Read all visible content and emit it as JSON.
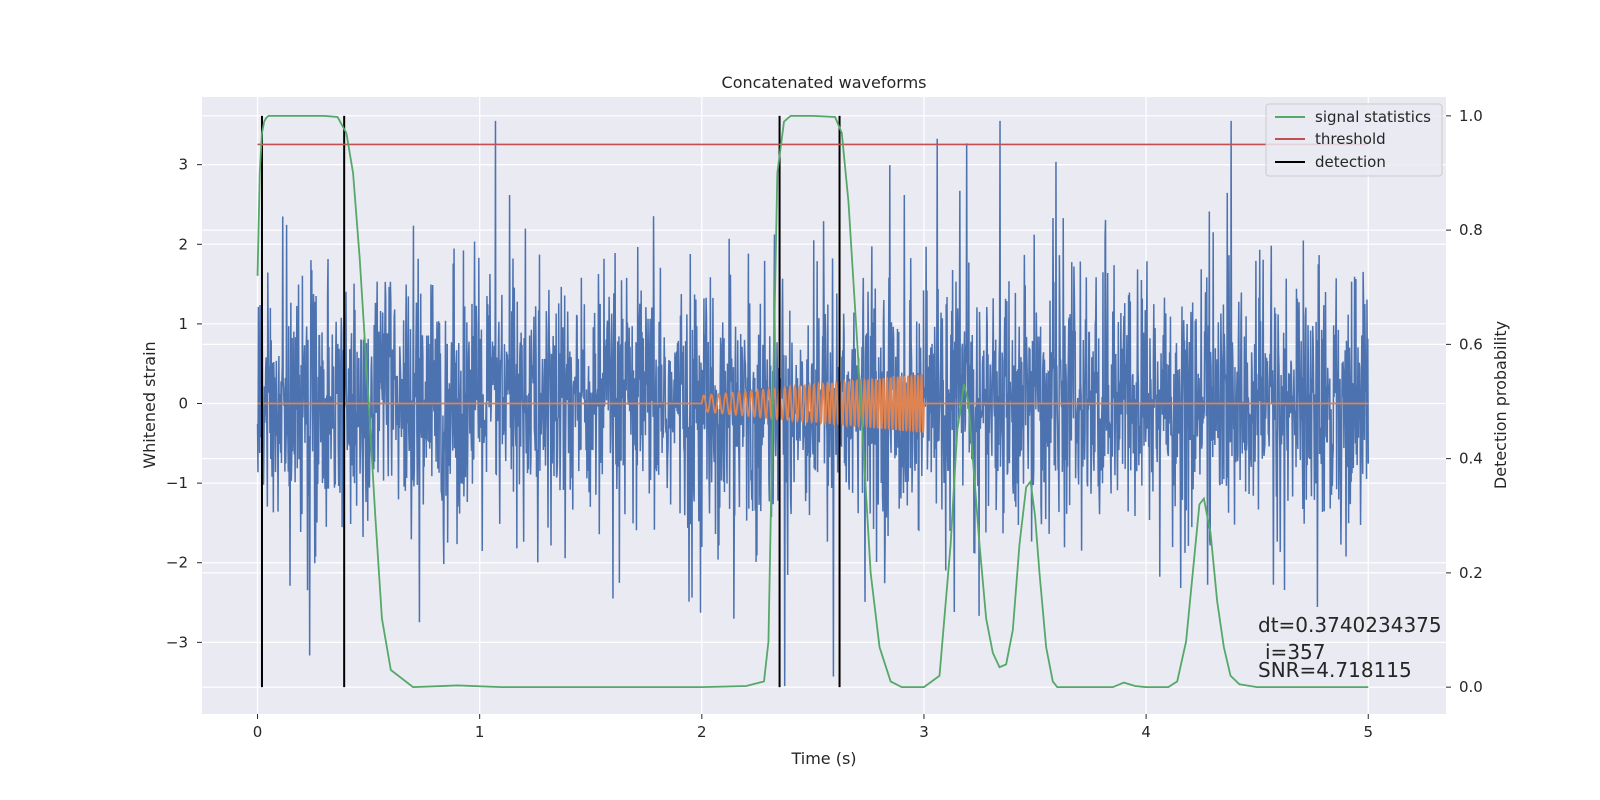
{
  "chart_data": {
    "type": "line",
    "title": "Concatenated waveforms",
    "xlabel": "Time (s)",
    "ylabel": "Whitened strain",
    "y2label": "Detection probability",
    "xlim": [
      -0.25,
      5.35
    ],
    "ylim": [
      -3.9,
      3.85
    ],
    "y2lim": [
      -0.047,
      1.033
    ],
    "xticks": [
      0,
      1,
      2,
      3,
      4,
      5
    ],
    "yticks": [
      -3,
      -2,
      -1,
      0,
      1,
      2,
      3
    ],
    "y2ticks": [
      0.0,
      0.2,
      0.4,
      0.6,
      0.8,
      1.0
    ],
    "xtick_labels": [
      "0",
      "1",
      "2",
      "3",
      "4",
      "5"
    ],
    "ytick_labels": [
      "−3",
      "−2",
      "−1",
      "0",
      "1",
      "2",
      "3"
    ],
    "y2tick_labels": [
      "0.0",
      "0.2",
      "0.4",
      "0.6",
      "0.8",
      "1.0"
    ],
    "grid": true,
    "legend_position": "top-right",
    "series": [
      {
        "name": "",
        "axis": "left",
        "color": "#4c72b0",
        "kind": "noise",
        "x_range": [
          0,
          5
        ],
        "typical_amplitude": 0.75,
        "max_abs": 3.55
      },
      {
        "name": "",
        "axis": "left",
        "color": "#dd8452",
        "kind": "chirp",
        "x_range": [
          0,
          5
        ],
        "chirp_start": 2.0,
        "chirp_end": 3.0,
        "amplitude_start": 0.1,
        "amplitude_end": 0.37
      },
      {
        "name": "signal statistics",
        "axis": "right",
        "color": "#55a868",
        "x": [
          0,
          0.01,
          0.02,
          0.03,
          0.04,
          0.05,
          0.07,
          0.1,
          0.2,
          0.3,
          0.36,
          0.4,
          0.43,
          0.46,
          0.5,
          0.53,
          0.56,
          0.6,
          0.7,
          0.9,
          1.1,
          1.5,
          2.0,
          2.2,
          2.28,
          2.3,
          2.32,
          2.34,
          2.37,
          2.4,
          2.5,
          2.6,
          2.63,
          2.66,
          2.7,
          2.73,
          2.76,
          2.8,
          2.85,
          2.9,
          3.0,
          3.07,
          3.12,
          3.15,
          3.18,
          3.2,
          3.22,
          3.25,
          3.28,
          3.31,
          3.34,
          3.37,
          3.4,
          3.43,
          3.46,
          3.48,
          3.5,
          3.52,
          3.55,
          3.58,
          3.6,
          3.65,
          3.7,
          3.85,
          3.9,
          3.95,
          4.0,
          4.1,
          4.14,
          4.18,
          4.21,
          4.24,
          4.26,
          4.29,
          4.32,
          4.35,
          4.38,
          4.42,
          4.5,
          5.0
        ],
        "values": [
          0.72,
          0.9,
          0.97,
          0.99,
          0.997,
          1.0,
          1.0,
          1.0,
          1.0,
          1.0,
          0.998,
          0.97,
          0.9,
          0.75,
          0.5,
          0.3,
          0.12,
          0.03,
          0.0,
          0.003,
          0.0,
          0.0,
          0.0,
          0.002,
          0.01,
          0.08,
          0.5,
          0.9,
          0.99,
          1.0,
          1.0,
          0.998,
          0.97,
          0.85,
          0.6,
          0.4,
          0.2,
          0.07,
          0.01,
          0.0,
          0.0,
          0.02,
          0.25,
          0.45,
          0.53,
          0.5,
          0.4,
          0.25,
          0.12,
          0.06,
          0.035,
          0.04,
          0.1,
          0.25,
          0.35,
          0.36,
          0.3,
          0.2,
          0.07,
          0.01,
          0.0,
          0.0,
          0.0,
          0.0,
          0.008,
          0.002,
          0.0,
          0.0,
          0.01,
          0.08,
          0.2,
          0.32,
          0.33,
          0.27,
          0.15,
          0.07,
          0.02,
          0.005,
          0.0,
          0.0
        ]
      },
      {
        "name": "threshold",
        "axis": "right",
        "color": "#c44e52",
        "x": [
          0,
          5
        ],
        "values": [
          0.95,
          0.95
        ]
      },
      {
        "name": "detection",
        "axis": "right",
        "color": "#000000",
        "kind": "vlines",
        "x": [
          0.02,
          0.39,
          2.35,
          2.62
        ],
        "y_range": [
          0.0,
          1.0
        ]
      }
    ],
    "annotations": [
      "dt=0.3740234375",
      "i=357",
      "SNR=4.718115"
    ]
  }
}
